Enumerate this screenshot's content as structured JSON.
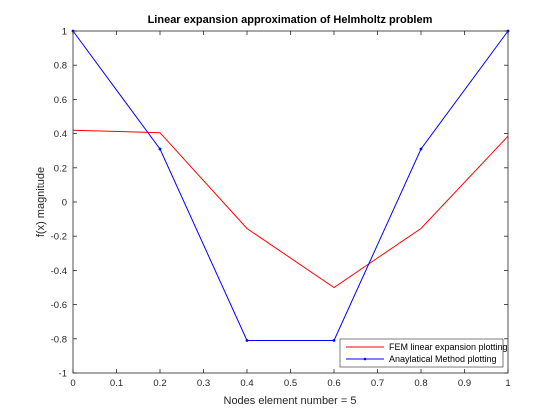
{
  "chart_data": {
    "type": "line",
    "title": "Linear expansion approximation of Helmholtz problem",
    "xlabel": "Nodes element number = 5",
    "ylabel": "f(x) magnitude",
    "xlim": [
      0,
      1
    ],
    "ylim": [
      -1,
      1
    ],
    "xticks": [
      "0",
      "0.1",
      "0.2",
      "0.3",
      "0.4",
      "0.5",
      "0.6",
      "0.7",
      "0.8",
      "0.9",
      "1"
    ],
    "yticks": [
      "-1",
      "-0.8",
      "-0.6",
      "-0.4",
      "-0.2",
      "0",
      "0.2",
      "0.4",
      "0.6",
      "0.8",
      "1"
    ],
    "grid": false,
    "legend_position": "bottom-right",
    "series": [
      {
        "name": "FEM linear expansion plotting",
        "color": "#ff0000",
        "marker": "none",
        "x": [
          0,
          0.2,
          0.4,
          0.6,
          0.8,
          1.0
        ],
        "y": [
          0.42,
          0.405,
          -0.155,
          -0.5,
          -0.155,
          0.385
        ]
      },
      {
        "name": "Anaylatical Method plotting",
        "color": "#0000ff",
        "marker": "point",
        "x": [
          0,
          0.2,
          0.4,
          0.6,
          0.8,
          1.0
        ],
        "y": [
          1.0,
          0.31,
          -0.81,
          -0.81,
          0.31,
          1.0
        ]
      }
    ]
  }
}
